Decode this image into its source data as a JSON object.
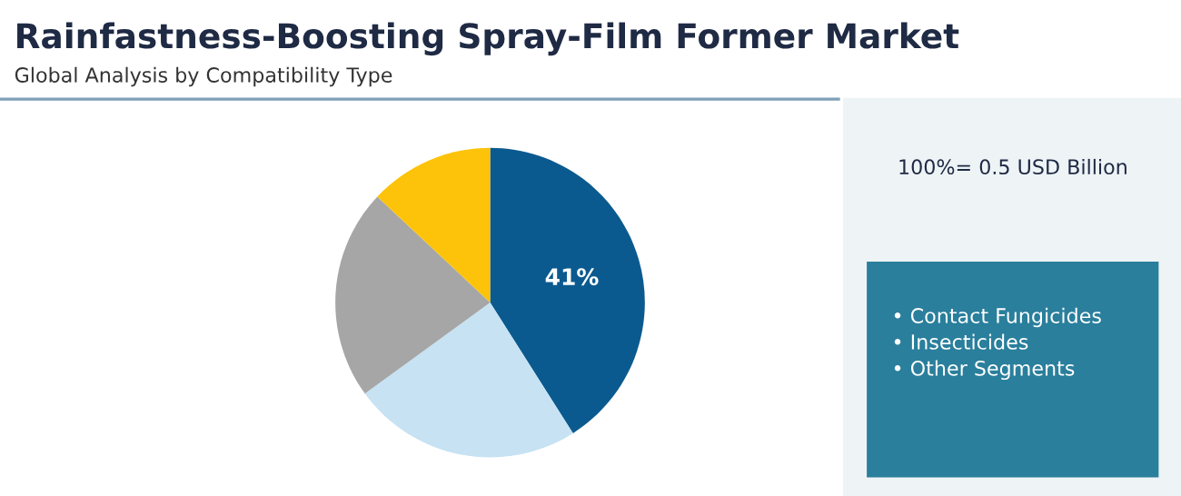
{
  "chart_data": {
    "type": "pie",
    "title": "Rainfastness-Boosting Spray-Film Former Market",
    "subtitle": "Global Analysis by Compatibility Type",
    "categories": [
      null,
      null,
      null,
      null
    ],
    "values": [
      41,
      24,
      22,
      13
    ],
    "colors": [
      "#0b5a8f",
      "#c6e2f3",
      "#a6a6a6",
      "#fcc30a"
    ],
    "value_labels": [
      "41%",
      null,
      null,
      null
    ],
    "annotations": [
      "100%= 0.5 USD Billion",
      "• Contact Fungicides",
      "• Insecticides",
      "• Other Segments"
    ]
  }
}
